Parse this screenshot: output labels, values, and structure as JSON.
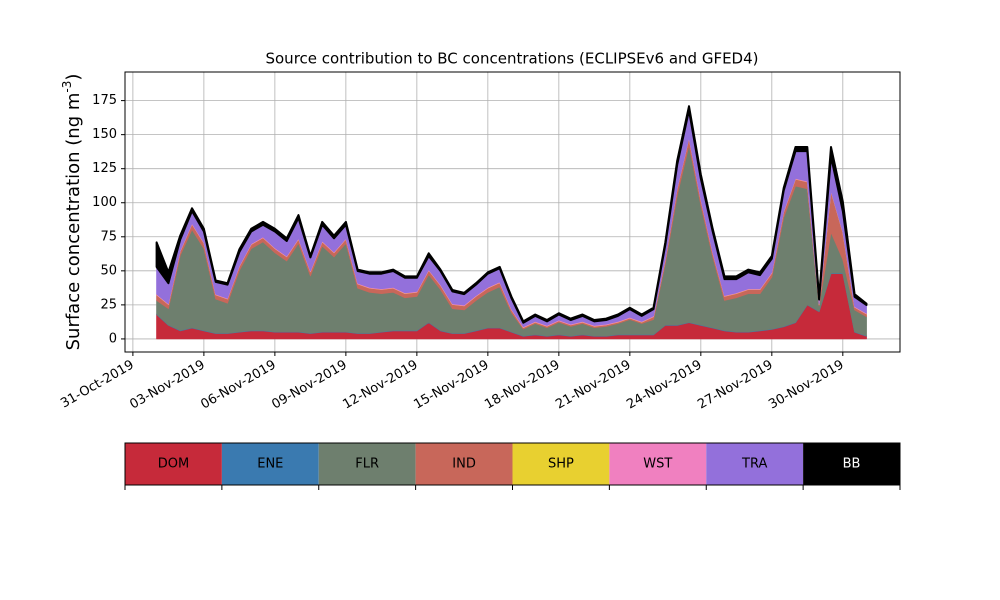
{
  "chart_data": {
    "type": "stacked_area",
    "title": "Source contribution to BC concentrations (ECLIPSEv6 and GFED4)",
    "y_label": "Surface concentration (ng m$^{-3}$)",
    "x": [
      "2019-11-01T00:00",
      "2019-11-01T12:00",
      "2019-11-02T00:00",
      "2019-11-02T12:00",
      "2019-11-03T00:00",
      "2019-11-03T12:00",
      "2019-11-04T00:00",
      "2019-11-04T12:00",
      "2019-11-05T00:00",
      "2019-11-05T12:00",
      "2019-11-06T00:00",
      "2019-11-06T12:00",
      "2019-11-07T00:00",
      "2019-11-07T12:00",
      "2019-11-08T00:00",
      "2019-11-08T12:00",
      "2019-11-09T00:00",
      "2019-11-09T12:00",
      "2019-11-10T00:00",
      "2019-11-10T12:00",
      "2019-11-11T00:00",
      "2019-11-11T12:00",
      "2019-11-12T00:00",
      "2019-11-12T12:00",
      "2019-11-13T00:00",
      "2019-11-13T12:00",
      "2019-11-14T00:00",
      "2019-11-14T12:00",
      "2019-11-15T00:00",
      "2019-11-15T12:00",
      "2019-11-16T00:00",
      "2019-11-16T12:00",
      "2019-11-17T00:00",
      "2019-11-17T12:00",
      "2019-11-18T00:00",
      "2019-11-18T12:00",
      "2019-11-19T00:00",
      "2019-11-19T12:00",
      "2019-11-20T00:00",
      "2019-11-20T12:00",
      "2019-11-21T00:00",
      "2019-11-21T12:00",
      "2019-11-22T00:00",
      "2019-11-22T12:00",
      "2019-11-23T00:00",
      "2019-11-23T12:00",
      "2019-11-24T00:00",
      "2019-11-24T12:00",
      "2019-11-25T00:00",
      "2019-11-25T12:00",
      "2019-11-26T00:00",
      "2019-11-26T12:00",
      "2019-11-27T00:00",
      "2019-11-27T12:00",
      "2019-11-28T00:00",
      "2019-11-28T12:00",
      "2019-11-29T00:00",
      "2019-11-29T12:00",
      "2019-11-30T00:00",
      "2019-11-30T12:00",
      "2019-12-01T00:00"
    ],
    "series": [
      {
        "name": "DOM",
        "color": "#c62a3a",
        "values": [
          18,
          10,
          6,
          8,
          6,
          4,
          4,
          5,
          6,
          6,
          5,
          5,
          5,
          4,
          5,
          5,
          5,
          4,
          4,
          5,
          6,
          6,
          6,
          12,
          6,
          4,
          4,
          6,
          8,
          8,
          5,
          2,
          3,
          2,
          3,
          2,
          3,
          2,
          2,
          3,
          3,
          3,
          3,
          10,
          10,
          12,
          10,
          8,
          6,
          5,
          5,
          6,
          7,
          9,
          12,
          25,
          20,
          48,
          48,
          5,
          2
        ]
      },
      {
        "name": "ENE",
        "color": "#3a7ab0",
        "values": [
          0.3,
          0.3,
          0.3,
          0.3,
          0.3,
          0.3,
          0.3,
          0.3,
          0.3,
          0.3,
          0.3,
          0.3,
          0.3,
          0.3,
          0.3,
          0.3,
          0.3,
          0.3,
          0.3,
          0.3,
          0.3,
          0.3,
          0.3,
          0.3,
          0.3,
          0.3,
          0.3,
          0.3,
          0.3,
          0.3,
          0.3,
          0.3,
          0.3,
          0.3,
          0.3,
          0.3,
          0.3,
          0.3,
          0.3,
          0.3,
          0.3,
          0.3,
          0.3,
          0.3,
          0.3,
          0.3,
          0.3,
          0.3,
          0.3,
          0.3,
          0.3,
          0.3,
          0.3,
          0.3,
          0.3,
          0.3,
          0.3,
          0.3,
          0.3,
          0.3,
          0.3
        ]
      },
      {
        "name": "FLR",
        "color": "#6e7f6e",
        "values": [
          10,
          12,
          55,
          72,
          60,
          25,
          22,
          45,
          60,
          65,
          58,
          52,
          65,
          42,
          63,
          55,
          65,
          33,
          30,
          28,
          28,
          24,
          25,
          35,
          30,
          18,
          17,
          22,
          26,
          30,
          14,
          5,
          8,
          6,
          9,
          7,
          8,
          6,
          7,
          8,
          11,
          8,
          11,
          45,
          95,
          130,
          88,
          52,
          22,
          25,
          28,
          27,
          38,
          80,
          100,
          85,
          4,
          30,
          10,
          16,
          14
        ]
      },
      {
        "name": "IND",
        "color": "#c8675a",
        "values": [
          4,
          3,
          3,
          4,
          4,
          3,
          3,
          3,
          3,
          3,
          3,
          3,
          3,
          3,
          3,
          3,
          3,
          3,
          3,
          3,
          3,
          3,
          3,
          3,
          3,
          3,
          3,
          3,
          3,
          3,
          2,
          1,
          1,
          1,
          1,
          1,
          1,
          1,
          1,
          1,
          1,
          1,
          2,
          3,
          5,
          5,
          4,
          3,
          3,
          3,
          3,
          3,
          3,
          4,
          5,
          5,
          1,
          30,
          20,
          2,
          2
        ]
      },
      {
        "name": "SHP",
        "color": "#e8d030",
        "values": [
          0.1,
          0.1,
          0.1,
          0.1,
          0.1,
          0.1,
          0.1,
          0.1,
          0.1,
          0.1,
          0.1,
          0.1,
          0.1,
          0.1,
          0.1,
          0.1,
          0.1,
          0.1,
          0.1,
          0.1,
          0.1,
          0.1,
          0.1,
          0.1,
          0.1,
          0.1,
          0.1,
          0.1,
          0.1,
          0.1,
          0.1,
          0.1,
          0.1,
          0.1,
          0.1,
          0.1,
          0.1,
          0.1,
          0.1,
          0.1,
          0.1,
          0.1,
          0.1,
          0.1,
          0.1,
          0.1,
          0.1,
          0.1,
          0.1,
          0.1,
          0.1,
          0.1,
          0.1,
          0.1,
          0.1,
          0.1,
          0.1,
          0.1,
          0.1,
          0.1,
          0.1
        ]
      },
      {
        "name": "WST",
        "color": "#f080c0",
        "values": [
          0.5,
          0.5,
          0.5,
          0.5,
          0.5,
          0.5,
          0.5,
          0.5,
          0.5,
          0.5,
          0.5,
          0.5,
          0.5,
          0.5,
          0.5,
          0.5,
          0.5,
          0.5,
          0.5,
          0.5,
          0.5,
          0.5,
          0.5,
          0.5,
          0.5,
          0.5,
          0.5,
          0.5,
          0.5,
          0.5,
          0.5,
          0.5,
          0.5,
          0.5,
          0.5,
          0.5,
          0.5,
          0.5,
          0.5,
          0.5,
          0.5,
          0.5,
          0.5,
          0.5,
          0.5,
          0.5,
          0.5,
          0.5,
          0.5,
          0.5,
          0.5,
          0.5,
          0.5,
          0.5,
          0.5,
          0.5,
          0.5,
          0.5,
          0.5,
          0.5,
          0.5
        ]
      },
      {
        "name": "TRA",
        "color": "#9370db",
        "values": [
          20,
          15,
          8,
          9,
          8,
          9,
          10,
          10,
          9,
          9,
          12,
          11,
          15,
          10,
          12,
          10,
          10,
          9,
          10,
          11,
          12,
          11,
          10,
          10,
          10,
          9,
          8,
          8,
          10,
          10,
          8,
          3,
          4,
          3,
          4,
          3,
          4,
          3,
          3,
          4,
          6,
          4,
          5,
          10,
          17,
          20,
          15,
          15,
          12,
          10,
          12,
          10,
          10,
          15,
          20,
          22,
          3,
          25,
          15,
          7,
          6
        ]
      },
      {
        "name": "BB",
        "color": "#000000",
        "values": [
          18,
          8,
          3,
          2,
          2,
          1,
          1,
          2,
          2,
          2,
          2,
          2,
          2,
          1,
          2,
          2,
          2,
          1,
          1,
          1,
          1,
          1,
          1,
          2,
          1,
          1,
          1,
          1,
          1,
          1,
          1,
          1,
          1,
          1,
          1,
          1,
          1,
          1,
          1,
          1,
          1,
          1,
          1,
          2,
          3,
          3,
          3,
          2,
          2,
          2,
          2,
          2,
          2,
          2,
          3,
          3,
          2,
          7,
          7,
          2,
          1
        ]
      }
    ],
    "xlim": [
      "2019-10-30T16:00",
      "2019-12-02T10:00"
    ],
    "xticks": [
      {
        "value": "2019-10-31",
        "label": "31-Oct-2019"
      },
      {
        "value": "2019-11-03",
        "label": "03-Nov-2019"
      },
      {
        "value": "2019-11-06",
        "label": "06-Nov-2019"
      },
      {
        "value": "2019-11-09",
        "label": "09-Nov-2019"
      },
      {
        "value": "2019-11-12",
        "label": "12-Nov-2019"
      },
      {
        "value": "2019-11-15",
        "label": "15-Nov-2019"
      },
      {
        "value": "2019-11-18",
        "label": "18-Nov-2019"
      },
      {
        "value": "2019-11-21",
        "label": "21-Nov-2019"
      },
      {
        "value": "2019-11-24",
        "label": "24-Nov-2019"
      },
      {
        "value": "2019-11-27",
        "label": "27-Nov-2019"
      },
      {
        "value": "2019-11-30",
        "label": "30-Nov-2019"
      }
    ],
    "ylim": [
      -9.6,
      196
    ],
    "yticks": [
      0,
      25,
      50,
      75,
      100,
      125,
      150,
      175
    ],
    "grid": true
  }
}
